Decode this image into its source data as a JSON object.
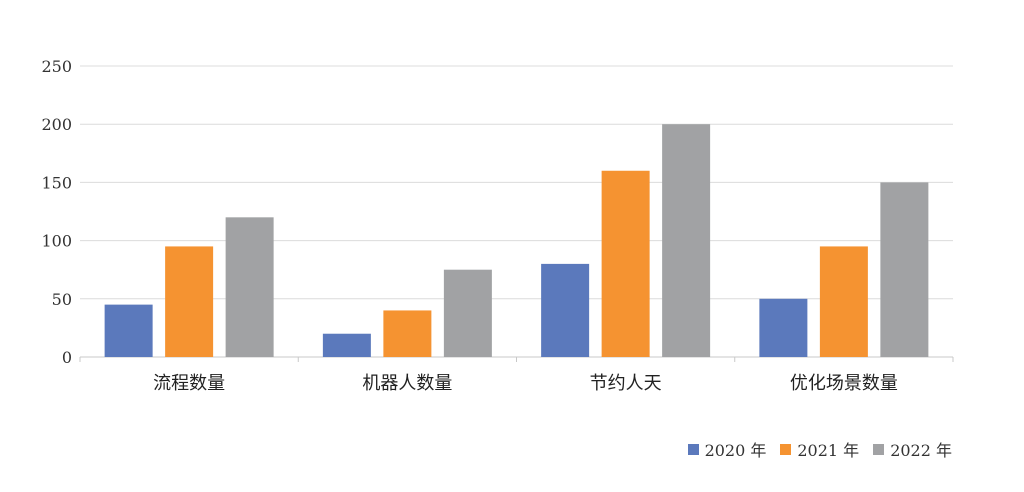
{
  "chart_data": {
    "type": "bar",
    "categories": [
      "流程数量",
      "机器人数量",
      "节约人天",
      "优化场景数量"
    ],
    "series": [
      {
        "name": "2020 年",
        "color": "#5b79bc",
        "values": [
          45,
          20,
          80,
          50
        ]
      },
      {
        "name": "2021 年",
        "color": "#f59331",
        "values": [
          95,
          40,
          160,
          95
        ]
      },
      {
        "name": "2022 年",
        "color": "#a1a2a4",
        "values": [
          120,
          75,
          200,
          150
        ]
      }
    ],
    "ylim": [
      0,
      250
    ],
    "yticks": [
      0,
      50,
      100,
      150,
      200,
      250
    ],
    "grid": true,
    "legend_position": "bottom-right",
    "title": "",
    "xlabel": "",
    "ylabel": ""
  }
}
